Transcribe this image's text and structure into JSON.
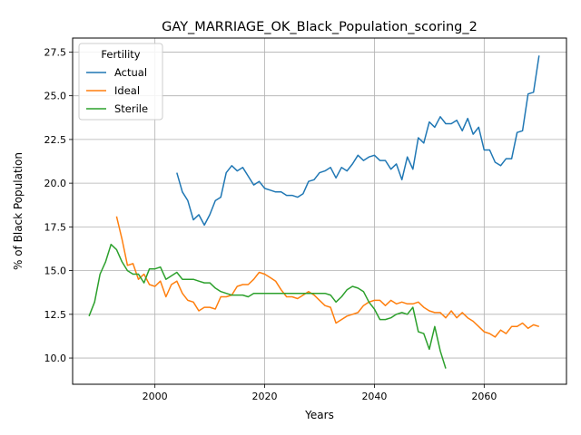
{
  "chart_data": {
    "type": "line",
    "title": "GAY_MARRIAGE_OK_Black_Population_scoring_2",
    "xlabel": "Years",
    "ylabel": "% of Black Population",
    "xlim": [
      1985,
      2075
    ],
    "ylim": [
      8.5,
      28.3
    ],
    "xticks": [
      2000,
      2020,
      2040,
      2060
    ],
    "yticks": [
      10.0,
      12.5,
      15.0,
      17.5,
      20.0,
      22.5,
      25.0,
      27.5
    ],
    "grid": true,
    "legend": {
      "title": "Fertility",
      "placement": "upper-left"
    },
    "series": [
      {
        "name": "Actual",
        "color": "#1f77b4",
        "x": [
          2004,
          2005,
          2006,
          2007,
          2008,
          2009,
          2010,
          2011,
          2012,
          2013,
          2014,
          2015,
          2016,
          2017,
          2018,
          2019,
          2020,
          2021,
          2022,
          2023,
          2024,
          2025,
          2026,
          2027,
          2028,
          2029,
          2030,
          2031,
          2032,
          2033,
          2034,
          2035,
          2036,
          2037,
          2038,
          2039,
          2040,
          2041,
          2042,
          2043,
          2044,
          2045,
          2046,
          2047,
          2048,
          2049,
          2050,
          2051,
          2052,
          2053,
          2054,
          2055,
          2056,
          2057,
          2058,
          2059,
          2060,
          2061,
          2062,
          2063,
          2064,
          2065,
          2066,
          2067,
          2068,
          2069,
          2070
        ],
        "y": [
          20.6,
          19.5,
          19.0,
          17.9,
          18.2,
          17.6,
          18.2,
          19.0,
          19.2,
          20.6,
          21.0,
          20.7,
          20.9,
          20.4,
          19.9,
          20.1,
          19.7,
          19.6,
          19.5,
          19.5,
          19.3,
          19.3,
          19.2,
          19.4,
          20.1,
          20.2,
          20.6,
          20.7,
          20.9,
          20.3,
          20.9,
          20.7,
          21.1,
          21.6,
          21.3,
          21.5,
          21.6,
          21.3,
          21.3,
          20.8,
          21.1,
          20.2,
          21.5,
          20.8,
          22.6,
          22.3,
          23.5,
          23.2,
          23.8,
          23.4,
          23.4,
          23.6,
          23.0,
          23.7,
          22.8,
          23.2,
          21.9,
          21.9,
          21.2,
          21.0,
          21.4,
          21.4,
          22.9,
          23.0,
          25.1,
          25.2,
          27.3
        ]
      },
      {
        "name": "Ideal",
        "color": "#ff7f0e",
        "x": [
          1993,
          1994,
          1995,
          1996,
          1997,
          1998,
          1999,
          2000,
          2001,
          2002,
          2003,
          2004,
          2005,
          2006,
          2007,
          2008,
          2009,
          2010,
          2011,
          2012,
          2013,
          2014,
          2015,
          2016,
          2017,
          2018,
          2019,
          2020,
          2021,
          2022,
          2023,
          2024,
          2025,
          2026,
          2027,
          2028,
          2029,
          2030,
          2031,
          2032,
          2033,
          2034,
          2035,
          2036,
          2037,
          2038,
          2039,
          2040,
          2041,
          2042,
          2043,
          2044,
          2045,
          2046,
          2047,
          2048,
          2049,
          2050,
          2051,
          2052,
          2053,
          2054,
          2055,
          2056,
          2057,
          2058,
          2059,
          2060,
          2061,
          2062,
          2063,
          2064,
          2065,
          2066,
          2067,
          2068,
          2069,
          2070
        ],
        "y": [
          18.1,
          16.8,
          15.3,
          15.4,
          14.5,
          14.8,
          14.2,
          14.1,
          14.4,
          13.5,
          14.2,
          14.4,
          13.7,
          13.3,
          13.2,
          12.7,
          12.9,
          12.9,
          12.8,
          13.5,
          13.5,
          13.6,
          14.1,
          14.2,
          14.2,
          14.5,
          14.9,
          14.8,
          14.6,
          14.4,
          13.9,
          13.5,
          13.5,
          13.4,
          13.6,
          13.8,
          13.6,
          13.3,
          13.0,
          12.9,
          12.0,
          12.2,
          12.4,
          12.5,
          12.6,
          13.0,
          13.2,
          13.3,
          13.3,
          13.0,
          13.3,
          13.1,
          13.2,
          13.1,
          13.1,
          13.2,
          12.9,
          12.7,
          12.6,
          12.6,
          12.3,
          12.7,
          12.3,
          12.6,
          12.3,
          12.1,
          11.8,
          11.5,
          11.4,
          11.2,
          11.6,
          11.4,
          11.8,
          11.8,
          12.0,
          11.7,
          11.9,
          11.8
        ]
      },
      {
        "name": "Sterile",
        "color": "#2ca02c",
        "x": [
          1988,
          1989,
          1990,
          1991,
          1992,
          1993,
          1994,
          1995,
          1996,
          1997,
          1998,
          1999,
          2000,
          2001,
          2002,
          2003,
          2004,
          2005,
          2006,
          2007,
          2008,
          2009,
          2010,
          2011,
          2012,
          2013,
          2014,
          2015,
          2016,
          2017,
          2018,
          2019,
          2020,
          2021,
          2022,
          2023,
          2024,
          2025,
          2026,
          2027,
          2028,
          2029,
          2030,
          2031,
          2032,
          2033,
          2034,
          2035,
          2036,
          2037,
          2038,
          2039,
          2040,
          2041,
          2042,
          2043,
          2044,
          2045,
          2046,
          2047,
          2048,
          2049,
          2050,
          2051,
          2052,
          2053
        ],
        "y": [
          12.4,
          13.2,
          14.8,
          15.5,
          16.5,
          16.2,
          15.5,
          15.0,
          14.8,
          14.8,
          14.3,
          15.1,
          15.1,
          15.2,
          14.5,
          14.7,
          14.9,
          14.5,
          14.5,
          14.5,
          14.4,
          14.3,
          14.3,
          14.0,
          13.8,
          13.7,
          13.6,
          13.6,
          13.6,
          13.5,
          13.7,
          13.7,
          13.7,
          13.7,
          13.7,
          13.7,
          13.7,
          13.7,
          13.7,
          13.7,
          13.7,
          13.7,
          13.7,
          13.7,
          13.6,
          13.2,
          13.5,
          13.9,
          14.1,
          14.0,
          13.8,
          13.2,
          12.8,
          12.2,
          12.2,
          12.3,
          12.5,
          12.6,
          12.5,
          12.9,
          11.5,
          11.4,
          10.5,
          11.8,
          10.4,
          9.4
        ]
      }
    ]
  }
}
